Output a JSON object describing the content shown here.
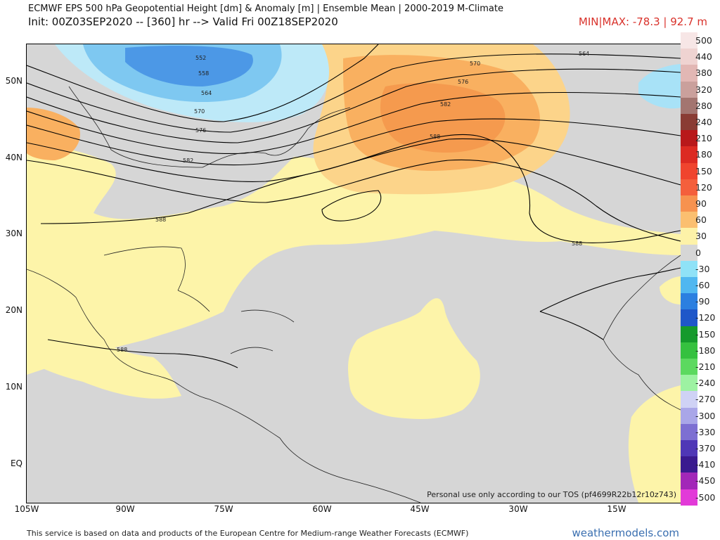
{
  "header": {
    "title": "ECMWF EPS 500 hPa Geopotential Height [dm] & Anomaly [m] | Ensemble Mean | 2000-2019 M-Climate",
    "init": "Init: 00Z03SEP2020 -- [360] hr --> Valid Fri 00Z18SEP2020",
    "minmax": "MIN|MAX: -78.3 | 92.7 m"
  },
  "map": {
    "lat_labels": [
      "50N",
      "40N",
      "30N",
      "20N",
      "10N",
      "EQ"
    ],
    "lon_labels": [
      "105W",
      "90W",
      "75W",
      "60W",
      "45W",
      "30W",
      "15W"
    ],
    "contour_labels": [
      "552",
      "558",
      "564",
      "570",
      "576",
      "582",
      "564",
      "570",
      "576",
      "582",
      "588",
      "588",
      "588",
      "588"
    ],
    "tos_notice": "Personal use only according to our TOS (pf4699R22b12r10z743)"
  },
  "colorbar": {
    "labels": [
      "500",
      "440",
      "380",
      "320",
      "280",
      "240",
      "210",
      "180",
      "150",
      "120",
      "90",
      "60",
      "30",
      "0",
      "-30",
      "-60",
      "-90",
      "-120",
      "-150",
      "-180",
      "-210",
      "-240",
      "-270",
      "-300",
      "-330",
      "-370",
      "-410",
      "-450",
      "-500"
    ],
    "colors": [
      "#f7e6e6",
      "#efd3d1",
      "#e2b7b4",
      "#caa09c",
      "#a37570",
      "#8a3c34",
      "#b8181a",
      "#dc2a22",
      "#f0442e",
      "#f45f3c",
      "#f7924f",
      "#fbbf70",
      "#fdf2a8",
      "#d6d6d6",
      "#8fe2f7",
      "#50b7f0",
      "#2b7fe0",
      "#1f57c9",
      "#159a2c",
      "#35c13f",
      "#5cd95f",
      "#9df2a2",
      "#cfd2f5",
      "#a9a6e8",
      "#7d6fd2",
      "#4f37b6",
      "#3a1a8f",
      "#a227b8",
      "#e23ad8"
    ]
  },
  "footer": {
    "attribution": "This service is based on data and products of the European Centre for Medium-range Weather Forecasts (ECMWF)",
    "brand": "weathermodels.com"
  }
}
